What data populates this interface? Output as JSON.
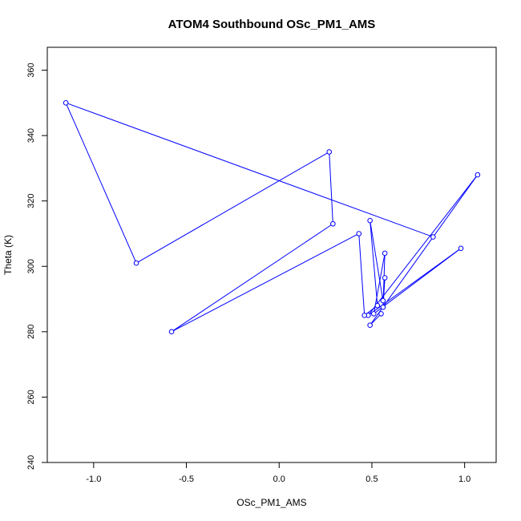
{
  "chart_data": {
    "type": "line",
    "title": "ATOM4 Southbound OSc_PM1_AMS",
    "xlabel": "OSc_PM1_AMS",
    "ylabel": "Theta (K)",
    "xlim": [
      -1.25,
      1.17
    ],
    "ylim": [
      240,
      367
    ],
    "xticks": [
      -1.0,
      -0.5,
      0.0,
      0.5,
      1.0
    ],
    "xtick_labels": [
      "-1.0",
      "-0.5",
      "0.0",
      "0.5",
      "1.0"
    ],
    "yticks": [
      240,
      260,
      280,
      300,
      320,
      340,
      360
    ],
    "ytick_labels": [
      "240",
      "260",
      "280",
      "300",
      "320",
      "340",
      "360"
    ],
    "grid": false,
    "marker": "open-circle",
    "color": "#0000ff",
    "points": [
      {
        "x": 0.55,
        "y": 285.5
      },
      {
        "x": 0.49,
        "y": 282.0
      },
      {
        "x": 1.07,
        "y": 328.0
      },
      {
        "x": 0.48,
        "y": 285.0
      },
      {
        "x": 0.98,
        "y": 305.5
      },
      {
        "x": 0.51,
        "y": 285.5
      },
      {
        "x": 0.57,
        "y": 304.0
      },
      {
        "x": 0.56,
        "y": 287.5
      },
      {
        "x": 0.57,
        "y": 296.5
      },
      {
        "x": 0.56,
        "y": 289.5
      },
      {
        "x": 0.49,
        "y": 314.0
      },
      {
        "x": 0.53,
        "y": 288.0
      },
      {
        "x": 0.46,
        "y": 285.0
      },
      {
        "x": 0.43,
        "y": 310.0
      },
      {
        "x": -0.58,
        "y": 280.0
      },
      {
        "x": 0.29,
        "y": 313.0
      },
      {
        "x": 0.27,
        "y": 335.0
      },
      {
        "x": -0.77,
        "y": 301.0
      },
      {
        "x": -1.15,
        "y": 350.0
      },
      {
        "x": 0.83,
        "y": 309.0
      }
    ]
  }
}
